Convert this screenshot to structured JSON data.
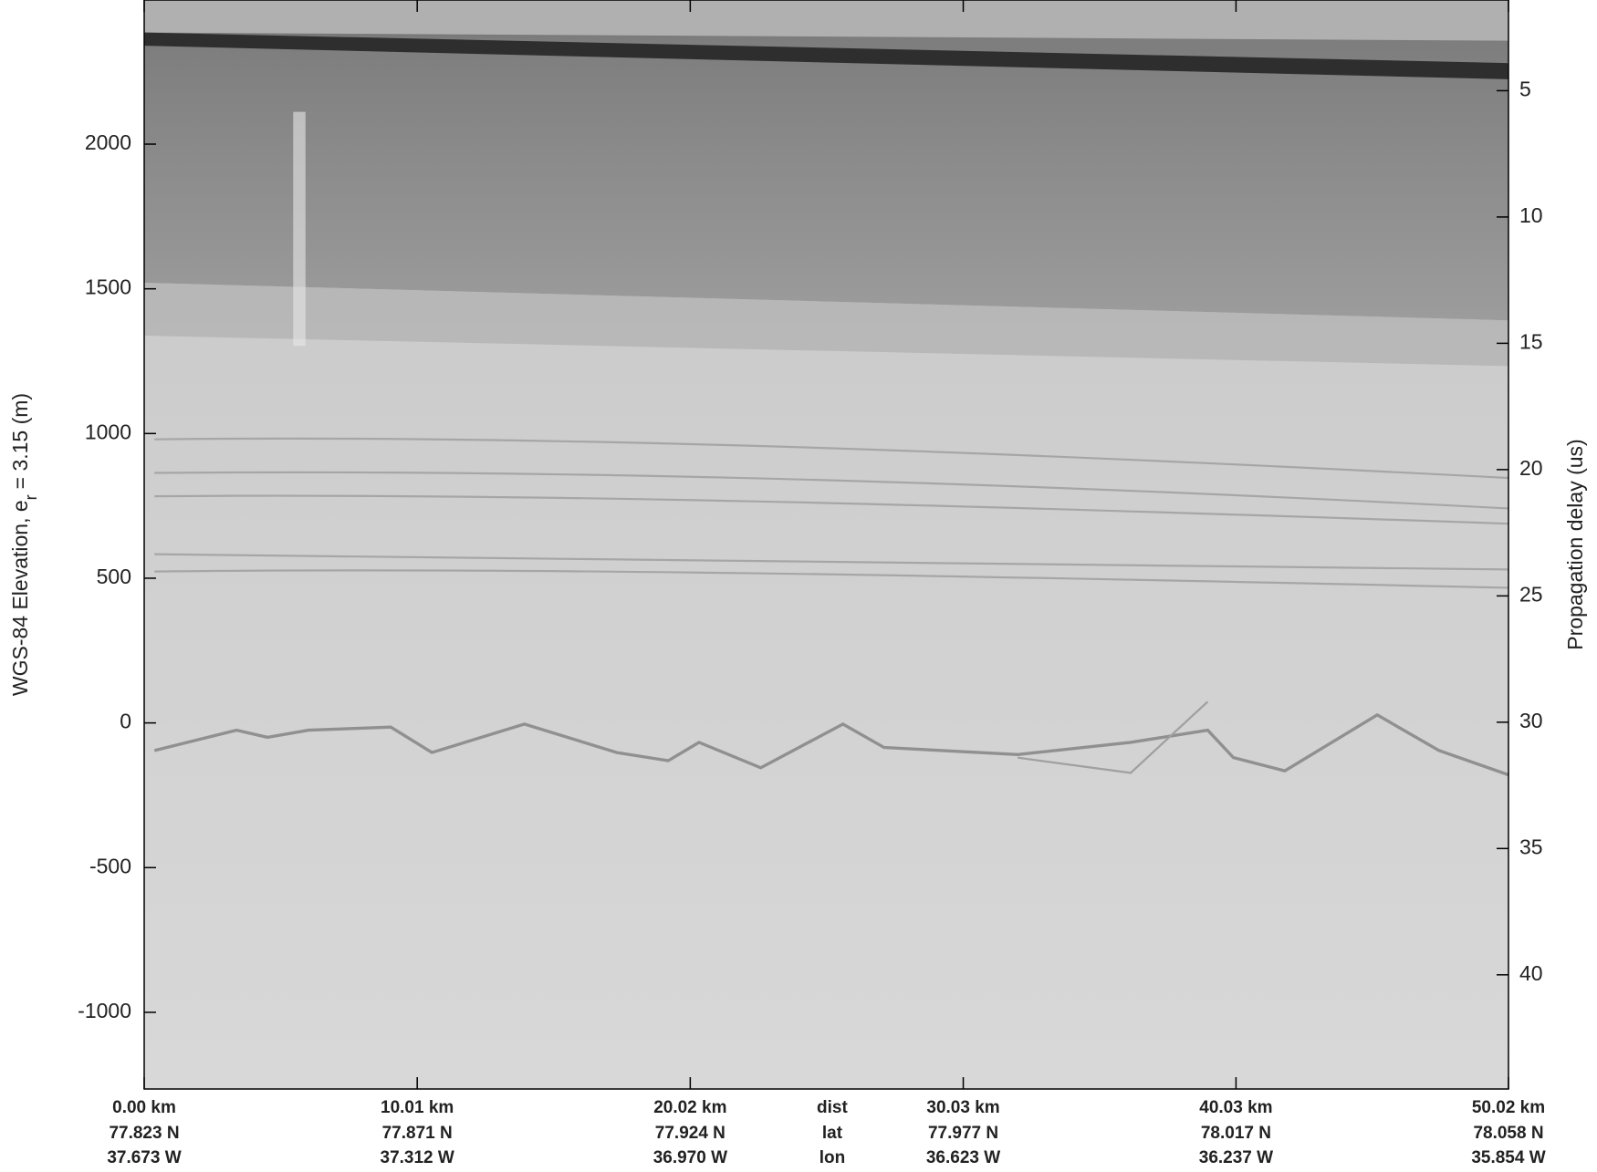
{
  "chart_data": {
    "type": "echogram",
    "ylabel": [
      "WGS-84 Elevation, e",
      "r",
      "= 3.15 (m)"
    ],
    "y2label": "Propagation delay (us)",
    "ylim": [
      -1265,
      2498
    ],
    "yticks": [
      -1000,
      -500,
      0,
      500,
      1000,
      1500,
      2000
    ],
    "y2lim": [
      44.52,
      1.41
    ],
    "y2ticks": [
      5,
      10,
      15,
      20,
      25,
      30,
      35,
      40
    ],
    "xlim": [
      0,
      50.02
    ],
    "xticks": [
      {
        "value": 0,
        "label": "0.00 km"
      },
      {
        "value": 10.01,
        "label": "10.01 km"
      },
      {
        "value": 20.02,
        "label": "20.02 km"
      },
      {
        "value": 30.03,
        "label": "30.03 km"
      },
      {
        "value": 40.03,
        "label": "40.03 km"
      },
      {
        "value": 50.02,
        "label": "50.02 km"
      }
    ],
    "lat_labels": [
      "77.823 N",
      "77.871 N",
      "77.924 N",
      "77.977 N",
      "78.017 N",
      "78.058 N"
    ],
    "lon_labels": [
      "37.673 W",
      "37.312 W",
      "36.970 W",
      "36.623 W",
      "36.237 W",
      "35.854 W"
    ],
    "row_labels": [
      "dist",
      "lat",
      "lon"
    ]
  }
}
